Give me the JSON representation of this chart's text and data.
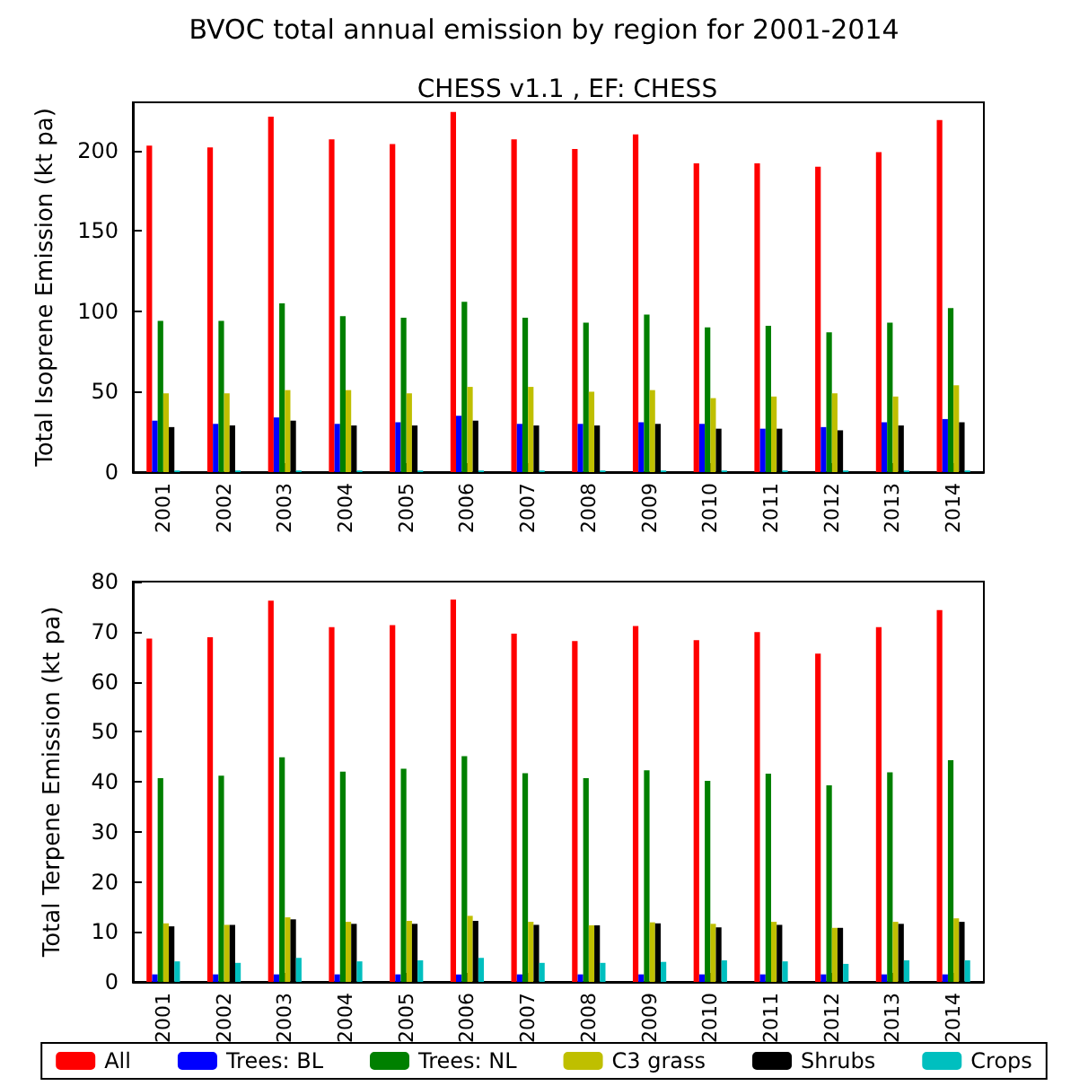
{
  "chart_data": [
    {
      "type": "bar",
      "title": "BVOC total annual emission by region for 2001-2014",
      "subtitle": "CHESS v1.1 , EF: CHESS",
      "ylabel": "Total Isoprene Emission (kt pa)",
      "categories": [
        "2001",
        "2002",
        "2003",
        "2004",
        "2005",
        "2006",
        "2007",
        "2008",
        "2009",
        "2010",
        "2011",
        "2012",
        "2013",
        "2014"
      ],
      "series": [
        {
          "color": "#ff0000",
          "values": [
            203,
            202,
            221,
            207,
            204,
            224,
            207,
            201,
            210,
            192,
            192,
            190,
            199,
            219
          ]
        },
        {
          "color": "#0000ff",
          "values": [
            32,
            30,
            34,
            30,
            31,
            35,
            30,
            30,
            31,
            30,
            27,
            28,
            31,
            33
          ]
        },
        {
          "color": "#008000",
          "values": [
            94,
            94,
            105,
            97,
            96,
            106,
            96,
            93,
            98,
            90,
            91,
            87,
            93,
            102
          ]
        },
        {
          "color": "#bfbf00",
          "values": [
            49,
            49,
            51,
            51,
            49,
            53,
            53,
            50,
            51,
            46,
            47,
            49,
            47,
            54
          ]
        },
        {
          "color": "#000000",
          "values": [
            28,
            29,
            32,
            29,
            29,
            32,
            29,
            29,
            30,
            27,
            27,
            26,
            29,
            31
          ]
        },
        {
          "color": "#00bfbf",
          "values": [
            1,
            1,
            1,
            1,
            1,
            1,
            1,
            1,
            1,
            1,
            1,
            1,
            1,
            1
          ]
        }
      ],
      "ylim": [
        0,
        230
      ],
      "yticks": [
        0,
        50,
        100,
        150,
        200
      ],
      "grid": false,
      "legend": false
    },
    {
      "type": "bar",
      "ylabel": "Total Terpene Emission (kt pa)",
      "categories": [
        "2001",
        "2002",
        "2003",
        "2004",
        "2005",
        "2006",
        "2007",
        "2008",
        "2009",
        "2010",
        "2011",
        "2012",
        "2013",
        "2014"
      ],
      "series": [
        {
          "name": "All",
          "color": "#ff0000",
          "values": [
            68.6,
            68.9,
            76.2,
            70.9,
            71.3,
            76.4,
            69.6,
            68.1,
            71.1,
            68.3,
            69.9,
            65.6,
            70.9,
            74.3
          ]
        },
        {
          "name": "Trees: BL",
          "color": "#0000ff",
          "values": [
            1.5,
            1.5,
            1.5,
            1.5,
            1.5,
            1.5,
            1.5,
            1.5,
            1.5,
            1.5,
            1.5,
            1.5,
            1.5,
            1.5
          ]
        },
        {
          "name": "Trees: NL",
          "color": "#008000",
          "values": [
            40.7,
            41.2,
            44.9,
            42,
            42.6,
            45.1,
            41.7,
            40.7,
            42.3,
            40.2,
            41.6,
            39.3,
            41.9,
            44.3
          ]
        },
        {
          "name": "C3 grass",
          "color": "#bfbf00",
          "values": [
            11.7,
            11.4,
            12.9,
            12,
            12.2,
            13.2,
            12,
            11.3,
            11.9,
            11.6,
            12,
            10.8,
            12,
            12.7
          ]
        },
        {
          "name": "Shrubs",
          "color": "#000000",
          "values": [
            11.1,
            11.4,
            12.5,
            11.6,
            11.6,
            12.2,
            11.4,
            11.3,
            11.7,
            10.9,
            11.4,
            10.8,
            11.6,
            12
          ]
        },
        {
          "name": "Crops",
          "color": "#00bfbf",
          "values": [
            4.1,
            3.8,
            4.8,
            4.1,
            4.3,
            4.8,
            3.8,
            3.8,
            4,
            4.3,
            4.1,
            3.6,
            4.3,
            4.3
          ]
        }
      ],
      "ylim": [
        0,
        80
      ],
      "yticks": [
        0,
        10,
        20,
        30,
        40,
        50,
        60,
        70,
        80
      ],
      "grid": false,
      "legend": "bottom"
    }
  ]
}
